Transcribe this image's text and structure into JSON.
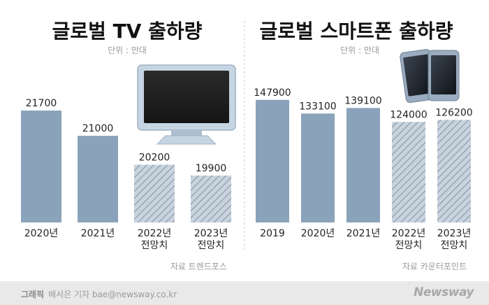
{
  "colors": {
    "bar": "#8aa3bb",
    "bar_pattern_bg": "#c9d3dd",
    "bar_pattern_line": "#6f8397",
    "title": "#111111",
    "muted": "#9a9a9a",
    "divider": "#c8c8c8"
  },
  "chart_data": [
    {
      "type": "bar",
      "title": "글로벌 TV 출하량",
      "unit": "단위 : 만대",
      "source": "자료  트렌드포스",
      "categories": [
        "2020년",
        "2021년",
        "2022년\n전망치",
        "2023년\n전망치"
      ],
      "values": [
        21700,
        21000,
        20200,
        19900
      ],
      "value_labels": [
        "21700",
        "21000",
        "20200",
        "19900"
      ],
      "forecast": [
        false,
        false,
        true,
        true
      ],
      "xlabel": "",
      "ylabel": "",
      "ylim": [
        18600,
        22050
      ],
      "grid": false,
      "legend": "none",
      "icon": "tv-monitor-icon"
    },
    {
      "type": "bar",
      "title": "글로벌 스마트폰 출하량",
      "unit": "단위 : 만대",
      "source": "자료  카운터포인트",
      "categories": [
        "2019",
        "2020년",
        "2021년",
        "2022년\n전망치",
        "2023년\n전망치"
      ],
      "values": [
        147900,
        133100,
        139100,
        124000,
        126200
      ],
      "value_labels": [
        "147900",
        "133100",
        "139100",
        "124000",
        "126200"
      ],
      "forecast": [
        false,
        false,
        false,
        true,
        true
      ],
      "xlabel": "",
      "ylabel": "",
      "ylim": [
        15000,
        150000
      ],
      "grid": false,
      "legend": "none",
      "icon": "smartphones-icon"
    }
  ],
  "footer": {
    "credit_label": "그래픽",
    "credit_text": "배서은 기자 bae@newsway.co.kr",
    "brand": "Newsway"
  }
}
